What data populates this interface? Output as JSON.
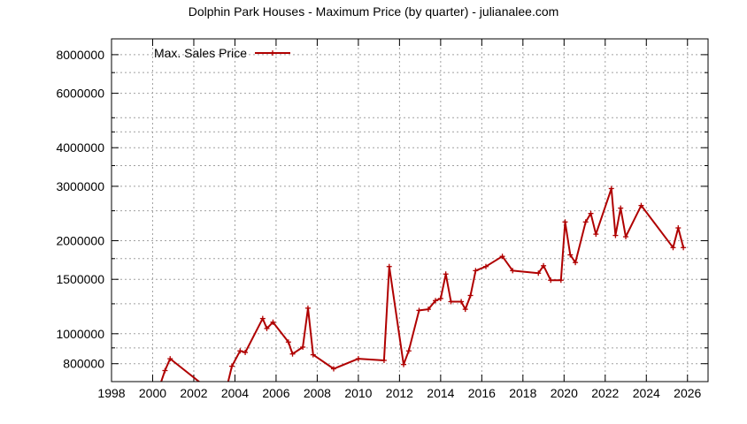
{
  "chart_data": {
    "type": "line",
    "title": "Dolphin Park Houses - Maximum Price (by quarter) - julianalee.com",
    "xlabel": "",
    "ylabel": "",
    "y_scale": "log",
    "xlim": [
      1998,
      2027
    ],
    "ylim": [
      700000,
      9000000
    ],
    "x_ticks": [
      "1998",
      "2000",
      "2002",
      "2004",
      "2006",
      "2008",
      "2010",
      "2012",
      "2014",
      "2016",
      "2018",
      "2020",
      "2022",
      "2024",
      "2026"
    ],
    "x_tick_values": [
      1998,
      2000,
      2002,
      2004,
      2006,
      2008,
      2010,
      2012,
      2014,
      2016,
      2018,
      2020,
      2022,
      2024,
      2026
    ],
    "y_ticks": [
      "800000",
      "1000000",
      "1500000",
      "2000000",
      "3000000",
      "4000000",
      "6000000",
      "8000000"
    ],
    "y_tick_values": [
      800000,
      1000000,
      1500000,
      2000000,
      3000000,
      4000000,
      6000000,
      8000000
    ],
    "y_minor_tick_values": [
      900000,
      1250000,
      1750000,
      2500000,
      3500000,
      4500000,
      5000000,
      7000000
    ],
    "grid": true,
    "legend": "top-left",
    "colors": {
      "series": "#b00000"
    },
    "series": [
      {
        "name": "Max. Sales Price",
        "x": [
          2000.25,
          2000.6,
          2000.85,
          2003.25,
          2003.6,
          2003.85,
          2004.25,
          2004.5,
          2005.35,
          2005.55,
          2005.85,
          2006.6,
          2006.8,
          2007.3,
          2007.55,
          2007.8,
          2008.8,
          2010,
          2011.25,
          2011.5,
          2012.2,
          2012.45,
          2012.95,
          2013.4,
          2013.75,
          2014,
          2014.25,
          2014.5,
          2015,
          2015.2,
          2015.45,
          2015.7,
          2016.2,
          2017,
          2017.5,
          2018.75,
          2019,
          2019.35,
          2019.85,
          2020.05,
          2020.3,
          2020.55,
          2021.05,
          2021.3,
          2021.55,
          2022.3,
          2022.5,
          2022.75,
          2023,
          2023.75,
          2025.3,
          2025.55,
          2025.8
        ],
        "y": [
          650000,
          760000,
          830000,
          620000,
          670000,
          785000,
          880000,
          870000,
          1120000,
          1040000,
          1090000,
          940000,
          860000,
          905000,
          1210000,
          855000,
          770000,
          830000,
          820000,
          1650000,
          795000,
          880000,
          1190000,
          1200000,
          1280000,
          1300000,
          1560000,
          1270000,
          1270000,
          1200000,
          1330000,
          1600000,
          1650000,
          1780000,
          1600000,
          1570000,
          1660000,
          1490000,
          1490000,
          2300000,
          1800000,
          1700000,
          2300000,
          2450000,
          2100000,
          2950000,
          2080000,
          2550000,
          2060000,
          2600000,
          1900000,
          2200000,
          1900000
        ]
      }
    ]
  }
}
